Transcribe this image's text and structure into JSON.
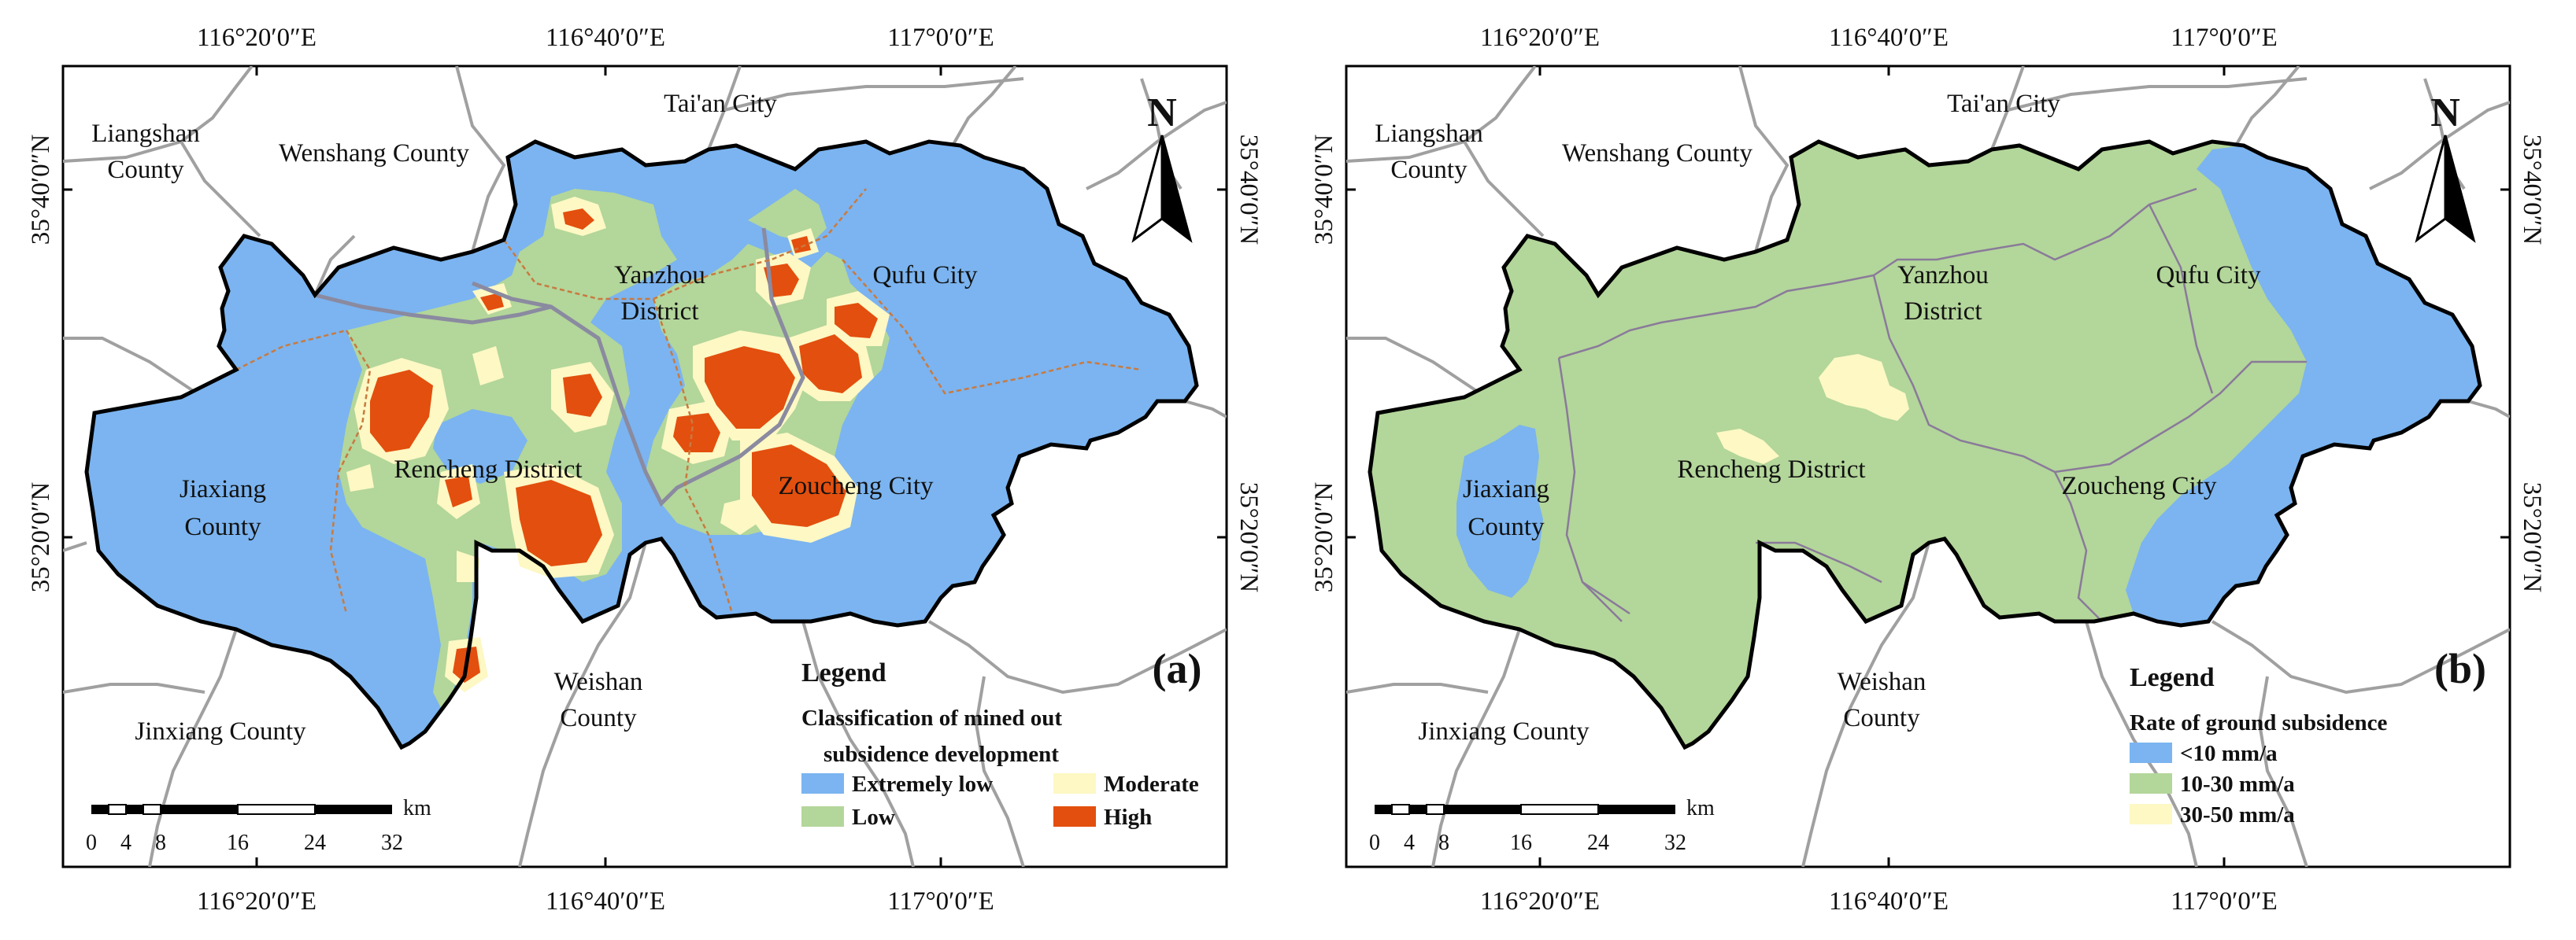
{
  "coordinates": {
    "lon_labels": [
      "116°20′0″E",
      "116°40′0″E",
      "117°0′0″E"
    ],
    "lat_labels": [
      "35°40′0″N",
      "35°20′0″N"
    ]
  },
  "panel_a": {
    "label": "(a)",
    "places": {
      "liangshan": "Liangshan County",
      "wenshang": "Wenshang County",
      "taian": "Tai'an City",
      "yanzhou": "Yanzhou District",
      "qufu": "Qufu City",
      "jiaxiang": "Jiaxiang County",
      "rencheng": "Rencheng District",
      "zoucheng": "Zoucheng City",
      "weishan": "Weishan County",
      "jinxiang": "Jinxiang County"
    },
    "legend": {
      "title": "Legend",
      "subtitle_line1": "Classification of mined out",
      "subtitle_line2": "subsidence development",
      "items": [
        {
          "label": "Extremely low",
          "color": "#7bb4f0"
        },
        {
          "label": "Moderate",
          "color": "#fdf8c4"
        },
        {
          "label": "Low",
          "color": "#b3d69a"
        },
        {
          "label": "High",
          "color": "#e34f0e"
        }
      ]
    }
  },
  "panel_b": {
    "label": "(b)",
    "places": {
      "liangshan": "Liangshan County",
      "wenshang": "Wenshang County",
      "taian": "Tai'an City",
      "yanzhou": "Yanzhou District",
      "qufu": "Qufu City",
      "jiaxiang": "Jiaxiang County",
      "rencheng": "Rencheng District",
      "zoucheng": "Zoucheng City",
      "weishan": "Weishan County",
      "jinxiang": "Jinxiang County"
    },
    "legend": {
      "title": "Legend",
      "subtitle": "Rate of ground subsidence",
      "items": [
        {
          "label": "<10 mm/a",
          "color": "#7bb4f0"
        },
        {
          "label": "10-30 mm/a",
          "color": "#b3d69a"
        },
        {
          "label": "30-50 mm/a",
          "color": "#fdf8c4"
        }
      ]
    }
  },
  "north_arrow": "N",
  "scale_bar": {
    "unit": "km",
    "ticks": [
      "0",
      "4",
      "8",
      "16",
      "24",
      "32"
    ]
  },
  "colors": {
    "extremely_low": "#7bb4f0",
    "low": "#b3d69a",
    "moderate": "#fdf8c4",
    "high": "#e34f0e",
    "road": "#a0a0a0",
    "boundary": "#000000",
    "district_line": "#8a7a9a"
  }
}
